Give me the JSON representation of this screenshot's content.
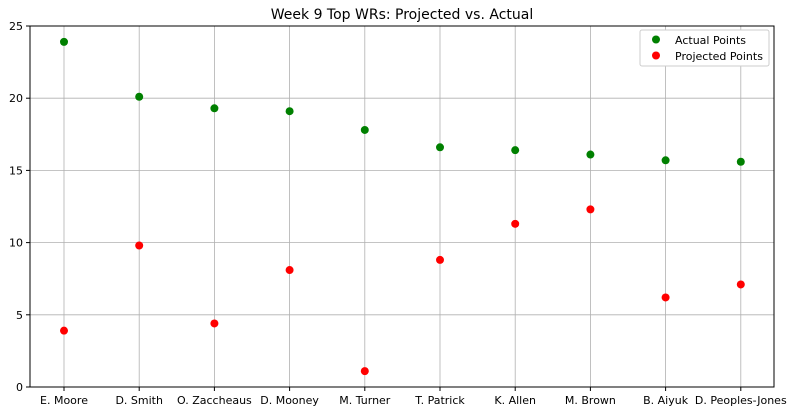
{
  "chart_data": {
    "type": "scatter",
    "title": "Week 9 Top WRs: Projected vs. Actual",
    "xlabel": "",
    "ylabel": "",
    "categories": [
      "E. Moore",
      "D. Smith",
      "O. Zaccheaus",
      "D. Mooney",
      "M. Turner",
      "T. Patrick",
      "K. Allen",
      "M. Brown",
      "B. Aiyuk",
      "D. Peoples-Jones"
    ],
    "series": [
      {
        "name": "Actual Points",
        "color": "#008000",
        "values": [
          23.9,
          20.1,
          19.3,
          19.1,
          17.8,
          16.6,
          16.4,
          16.1,
          15.7,
          15.6
        ]
      },
      {
        "name": "Projected Points",
        "color": "#ff0000",
        "values": [
          3.9,
          9.8,
          4.4,
          8.1,
          1.1,
          8.8,
          11.3,
          12.3,
          6.2,
          7.1
        ]
      }
    ],
    "ylim": [
      0,
      25
    ],
    "yticks": [
      0,
      5,
      10,
      15,
      20,
      25
    ],
    "grid": true,
    "legend_position": "top-right"
  }
}
